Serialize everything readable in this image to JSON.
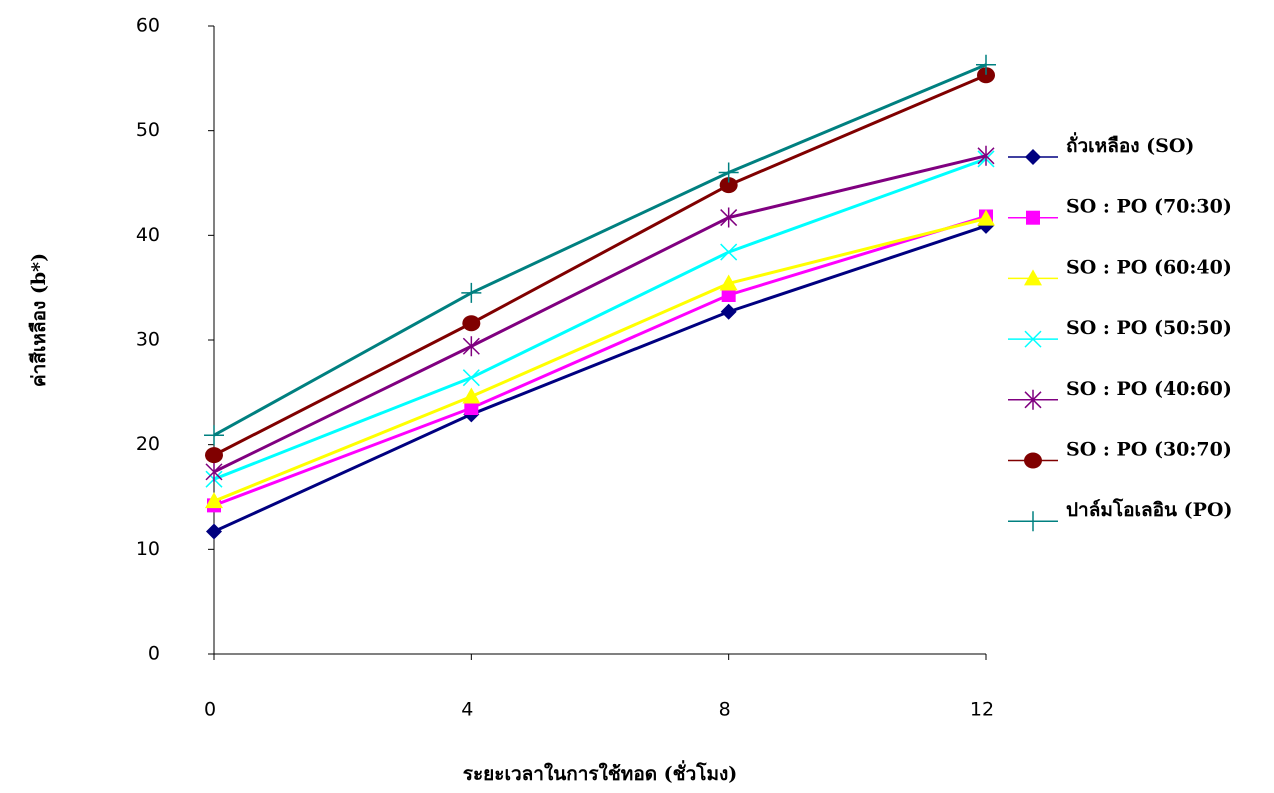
{
  "chart_data": {
    "type": "line",
    "x_label": "ระยะเวลาในการใช้ทอด (ชั่วโมง)",
    "y_label": "ค่าสีเหลือง (b*)",
    "x": [
      0,
      4,
      8,
      12
    ],
    "xlim": [
      0,
      12
    ],
    "xticks": [
      0,
      4,
      8,
      12
    ],
    "ylim": [
      0,
      60
    ],
    "yticks": [
      0,
      10,
      20,
      30,
      40,
      50,
      60
    ],
    "grid": false,
    "legend": "right",
    "series": [
      {
        "name": "ถั่วเหลือง (SO)",
        "color": "#000080",
        "marker": "diamond",
        "values": [
          11.7,
          22.9,
          32.7,
          40.9
        ]
      },
      {
        "name": "SO : PO (70:30)",
        "color": "#ff00ff",
        "marker": "square",
        "values": [
          14.2,
          23.5,
          34.3,
          41.8
        ]
      },
      {
        "name": "SO : PO (60:40)",
        "color": "#ffff00",
        "marker": "triangle",
        "values": [
          14.6,
          24.6,
          35.4,
          41.6
        ]
      },
      {
        "name": "SO : PO (50:50)",
        "color": "#00ffff",
        "marker": "x",
        "values": [
          16.7,
          26.4,
          38.4,
          47.3
        ]
      },
      {
        "name": "SO : PO (40:60)",
        "color": "#800080",
        "marker": "star",
        "values": [
          17.4,
          29.4,
          41.7,
          47.6
        ]
      },
      {
        "name": "SO : PO (30:70)",
        "color": "#800000",
        "marker": "circle",
        "values": [
          19.0,
          31.6,
          44.8,
          55.3
        ]
      },
      {
        "name": "ปาล์มโอเลอิน (PO)",
        "color": "#008080",
        "marker": "plus",
        "values": [
          20.9,
          34.5,
          46.0,
          56.3
        ]
      }
    ]
  }
}
